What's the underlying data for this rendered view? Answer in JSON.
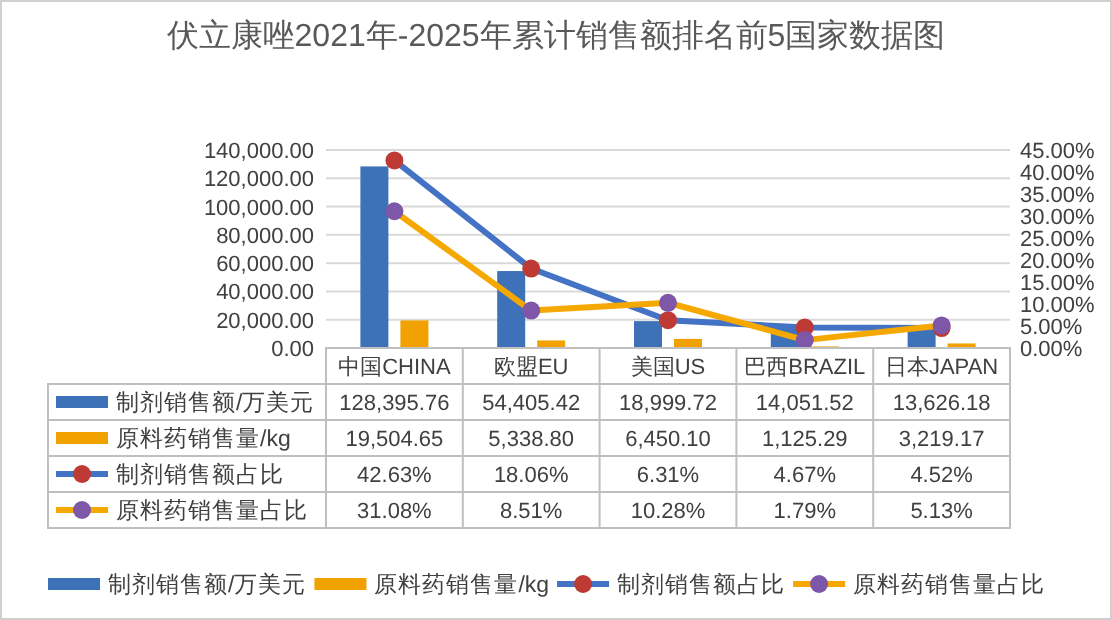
{
  "chart_data": {
    "type": "bar",
    "title": "伏立康唑2021年-2025年累计销售额排名前5国家数据图",
    "categories": [
      "中国CHINA",
      "欧盟EU",
      "美国US",
      "巴西BRAZIL",
      "日本JAPAN"
    ],
    "series": [
      {
        "name": "制剂销售额/万美元",
        "color": "#3d72b8",
        "values": [
          128395.76,
          54405.42,
          18999.72,
          14051.52,
          13626.18
        ],
        "value_labels": [
          "128,395.76",
          "54,405.42",
          "18,999.72",
          "14,051.52",
          "13,626.18"
        ]
      },
      {
        "name": "原料药销售量/kg",
        "color": "#f2a200",
        "values": [
          19504.65,
          5338.8,
          6450.1,
          1125.29,
          3219.17
        ],
        "value_labels": [
          "19,504.65",
          "5,338.80",
          "6,450.10",
          "1,125.29",
          "3,219.17"
        ]
      },
      {
        "name": "制剂销售额占比",
        "type": "line",
        "axis": "y2",
        "color": "#4472c4",
        "colors": [
          "#be3a34",
          "#be3a34",
          "#be3a34",
          "#be3a34",
          "#be3a34"
        ],
        "values": [
          42.63,
          18.06,
          6.31,
          4.67,
          4.52
        ],
        "value_labels": [
          "42.63%",
          "18.06%",
          "6.31%",
          "4.67%",
          "4.52%"
        ]
      },
      {
        "name": "原料药销售量占比",
        "type": "line",
        "axis": "y2",
        "color": "#f5a800",
        "colors": [
          "#7e57a8",
          "#7e57a8",
          "#7e57a8",
          "#7e57a8",
          "#7e57a8"
        ],
        "values": [
          31.08,
          8.51,
          10.28,
          1.79,
          5.13
        ],
        "value_labels": [
          "31.08%",
          "8.51%",
          "10.28%",
          "1.79%",
          "5.13%"
        ]
      }
    ],
    "ylim": [
      0,
      140000
    ],
    "yticks": [
      {
        "value": 0,
        "label": "0.00"
      },
      {
        "value": 20000,
        "label": "20,000.00"
      },
      {
        "value": 40000,
        "label": "40,000.00"
      },
      {
        "value": 60000,
        "label": "60,000.00"
      },
      {
        "value": 80000,
        "label": "80,000.00"
      },
      {
        "value": 100000,
        "label": "100,000.00"
      },
      {
        "value": 120000,
        "label": "120,000.00"
      },
      {
        "value": 140000,
        "label": "140,000.00"
      }
    ],
    "y2lim": [
      0,
      45
    ],
    "y2ticks": [
      {
        "value": 0,
        "label": "0.00%"
      },
      {
        "value": 5,
        "label": "5.00%"
      },
      {
        "value": 10,
        "label": "10.00%"
      },
      {
        "value": 15,
        "label": "15.00%"
      },
      {
        "value": 20,
        "label": "20.00%"
      },
      {
        "value": 25,
        "label": "25.00%"
      },
      {
        "value": 30,
        "label": "30.00%"
      },
      {
        "value": 35,
        "label": "35.00%"
      },
      {
        "value": 40,
        "label": "40.00%"
      },
      {
        "value": 45,
        "label": "45.00%"
      }
    ],
    "grid": "y",
    "marker": "circle",
    "legend": "bottom"
  }
}
